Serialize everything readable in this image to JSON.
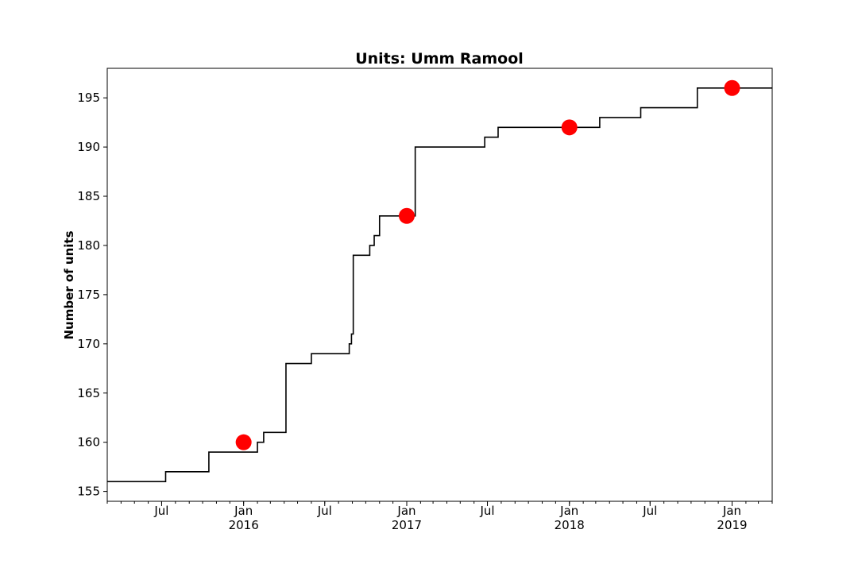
{
  "chart_data": {
    "type": "line",
    "title": "Units: Umm Ramool",
    "xlabel": "",
    "ylabel": "Number of units",
    "xlim": [
      "2015-03-01",
      "2019-04-01"
    ],
    "ylim": [
      154.0,
      198.0
    ],
    "grid": false,
    "y_ticks": [
      155,
      160,
      165,
      170,
      175,
      180,
      185,
      190,
      195
    ],
    "x_ticks": [
      {
        "date": "2015-07-01",
        "label": "Jul",
        "year": ""
      },
      {
        "date": "2016-01-01",
        "label": "Jan",
        "year": "2016"
      },
      {
        "date": "2016-07-01",
        "label": "Jul",
        "year": ""
      },
      {
        "date": "2017-01-01",
        "label": "Jan",
        "year": "2017"
      },
      {
        "date": "2017-07-01",
        "label": "Jul",
        "year": ""
      },
      {
        "date": "2018-01-01",
        "label": "Jan",
        "year": "2018"
      },
      {
        "date": "2018-07-01",
        "label": "Jul",
        "year": ""
      },
      {
        "date": "2019-01-01",
        "label": "Jan",
        "year": "2019"
      }
    ],
    "series": [
      {
        "style": "step",
        "color": "#000000",
        "points": [
          [
            "2015-03-01",
            156
          ],
          [
            "2015-07-10",
            157
          ],
          [
            "2015-10-15",
            159
          ],
          [
            "2016-02-01",
            160
          ],
          [
            "2016-02-15",
            161
          ],
          [
            "2016-04-05",
            168
          ],
          [
            "2016-06-01",
            169
          ],
          [
            "2016-08-25",
            170
          ],
          [
            "2016-08-30",
            171
          ],
          [
            "2016-09-03",
            179
          ],
          [
            "2016-10-10",
            180
          ],
          [
            "2016-10-20",
            181
          ],
          [
            "2016-11-01",
            183
          ],
          [
            "2017-01-20",
            190
          ],
          [
            "2017-06-25",
            191
          ],
          [
            "2017-07-25",
            192
          ],
          [
            "2018-03-10",
            193
          ],
          [
            "2018-06-10",
            194
          ],
          [
            "2018-10-15",
            196
          ],
          [
            "2019-04-01",
            196
          ]
        ]
      },
      {
        "style": "markers",
        "color": "#ff0000",
        "points": [
          [
            "2016-01-01",
            160
          ],
          [
            "2017-01-01",
            183
          ],
          [
            "2018-01-01",
            192
          ],
          [
            "2019-01-01",
            196
          ]
        ]
      }
    ]
  }
}
